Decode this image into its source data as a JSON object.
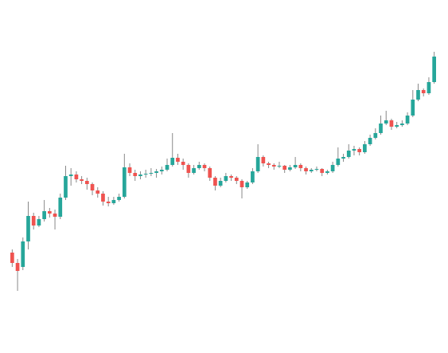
{
  "chart_data": {
    "type": "candlestick",
    "up_color": "#26a69a",
    "down_color": "#ef5350",
    "wick_color": "#888888",
    "ylim": [
      60,
      400
    ],
    "ohlc": [
      [
        126,
        130,
        108,
        113
      ],
      [
        113,
        118,
        78,
        103
      ],
      [
        108,
        145,
        104,
        140
      ],
      [
        140,
        190,
        130,
        172
      ],
      [
        172,
        176,
        155,
        160
      ],
      [
        160,
        172,
        158,
        168
      ],
      [
        168,
        192,
        165,
        178
      ],
      [
        178,
        182,
        170,
        175
      ],
      [
        175,
        180,
        155,
        171
      ],
      [
        171,
        200,
        168,
        195
      ],
      [
        195,
        235,
        192,
        222
      ],
      [
        222,
        232,
        210,
        224
      ],
      [
        224,
        228,
        214,
        218
      ],
      [
        218,
        222,
        212,
        216
      ],
      [
        216,
        220,
        205,
        212
      ],
      [
        212,
        214,
        198,
        204
      ],
      [
        204,
        208,
        195,
        200
      ],
      [
        200,
        203,
        185,
        190
      ],
      [
        190,
        196,
        184,
        188
      ],
      [
        188,
        196,
        186,
        192
      ],
      [
        192,
        200,
        190,
        196
      ],
      [
        196,
        250,
        194,
        233
      ],
      [
        233,
        238,
        222,
        226
      ],
      [
        226,
        230,
        216,
        222
      ],
      [
        222,
        228,
        218,
        224
      ],
      [
        224,
        230,
        220,
        225
      ],
      [
        225,
        232,
        222,
        226
      ],
      [
        226,
        231,
        220,
        228
      ],
      [
        228,
        234,
        224,
        230
      ],
      [
        230,
        244,
        228,
        236
      ],
      [
        236,
        276,
        234,
        245
      ],
      [
        245,
        250,
        236,
        240
      ],
      [
        240,
        244,
        230,
        236
      ],
      [
        236,
        238,
        220,
        226
      ],
      [
        226,
        236,
        224,
        232
      ],
      [
        232,
        240,
        230,
        236
      ],
      [
        236,
        238,
        228,
        232
      ],
      [
        232,
        234,
        216,
        220
      ],
      [
        220,
        222,
        204,
        210
      ],
      [
        210,
        220,
        208,
        216
      ],
      [
        216,
        226,
        214,
        222
      ],
      [
        222,
        224,
        216,
        220
      ],
      [
        220,
        222,
        212,
        216
      ],
      [
        216,
        218,
        194,
        208
      ],
      [
        208,
        216,
        206,
        214
      ],
      [
        214,
        232,
        212,
        228
      ],
      [
        228,
        262,
        226,
        246
      ],
      [
        246,
        248,
        234,
        238
      ],
      [
        238,
        240,
        232,
        236
      ],
      [
        236,
        238,
        230,
        234
      ],
      [
        234,
        240,
        232,
        235
      ],
      [
        235,
        236,
        226,
        230
      ],
      [
        230,
        236,
        228,
        233
      ],
      [
        233,
        246,
        231,
        236
      ],
      [
        236,
        238,
        228,
        232
      ],
      [
        232,
        234,
        224,
        228
      ],
      [
        228,
        232,
        226,
        230
      ],
      [
        230,
        234,
        228,
        231
      ],
      [
        231,
        232,
        222,
        226
      ],
      [
        226,
        230,
        224,
        228
      ],
      [
        228,
        240,
        226,
        236
      ],
      [
        236,
        258,
        234,
        244
      ],
      [
        244,
        250,
        240,
        246
      ],
      [
        246,
        262,
        244,
        254
      ],
      [
        254,
        260,
        248,
        256
      ],
      [
        256,
        258,
        248,
        252
      ],
      [
        252,
        266,
        250,
        262
      ],
      [
        262,
        274,
        260,
        270
      ],
      [
        270,
        282,
        268,
        276
      ],
      [
        276,
        298,
        274,
        288
      ],
      [
        288,
        304,
        286,
        292
      ],
      [
        292,
        294,
        280,
        284
      ],
      [
        284,
        290,
        282,
        286
      ],
      [
        286,
        292,
        284,
        288
      ],
      [
        288,
        302,
        286,
        298
      ],
      [
        298,
        330,
        296,
        318
      ],
      [
        318,
        338,
        316,
        330
      ],
      [
        330,
        332,
        322,
        326
      ],
      [
        326,
        346,
        324,
        340
      ],
      [
        340,
        378,
        338,
        372
      ]
    ]
  }
}
